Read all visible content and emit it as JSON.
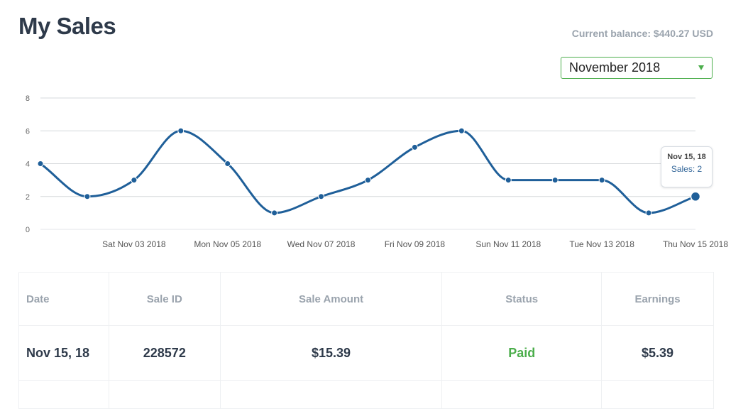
{
  "header": {
    "title": "My Sales",
    "balance": "Current balance: $440.27 USD"
  },
  "month_select": {
    "value": "November 2018"
  },
  "colors": {
    "line": "#1f5f99",
    "paid": "#4cae4c",
    "grid": "#d6d9dc"
  },
  "tooltip": {
    "date": "Nov 15, 18",
    "label": "Sales: 2"
  },
  "chart_data": {
    "type": "line",
    "x": [
      "Nov 01 2018",
      "Nov 02 2018",
      "Nov 03 2018",
      "Nov 04 2018",
      "Nov 05 2018",
      "Nov 06 2018",
      "Nov 07 2018",
      "Nov 08 2018",
      "Nov 09 2018",
      "Nov 10 2018",
      "Nov 11 2018",
      "Nov 12 2018",
      "Nov 13 2018",
      "Nov 14 2018",
      "Nov 15 2018"
    ],
    "series": [
      {
        "values": [
          4,
          2,
          3,
          6,
          4,
          1,
          2,
          3,
          5,
          6,
          3,
          3,
          3,
          1,
          2
        ]
      }
    ],
    "y_ticks": [
      "0",
      "2",
      "4",
      "6",
      "8"
    ],
    "x_tick_labels": [
      "Sat Nov 03 2018",
      "Mon Nov 05 2018",
      "Wed Nov 07 2018",
      "Fri Nov 09 2018",
      "Sun Nov 11 2018",
      "Tue Nov 13 2018",
      "Thu Nov 15 2018"
    ],
    "x_tick_index": [
      2,
      4,
      6,
      8,
      10,
      12,
      14
    ],
    "ylim": [
      0,
      8
    ],
    "grid": true,
    "highlight_index": 14,
    "title": "",
    "xlabel": "",
    "ylabel": ""
  },
  "table": {
    "headers": [
      "Date",
      "Sale ID",
      "Sale Amount",
      "Status",
      "Earnings"
    ],
    "rows": [
      [
        "Nov 15, 18",
        "228572",
        "$15.39",
        "Paid",
        "$5.39"
      ]
    ]
  }
}
